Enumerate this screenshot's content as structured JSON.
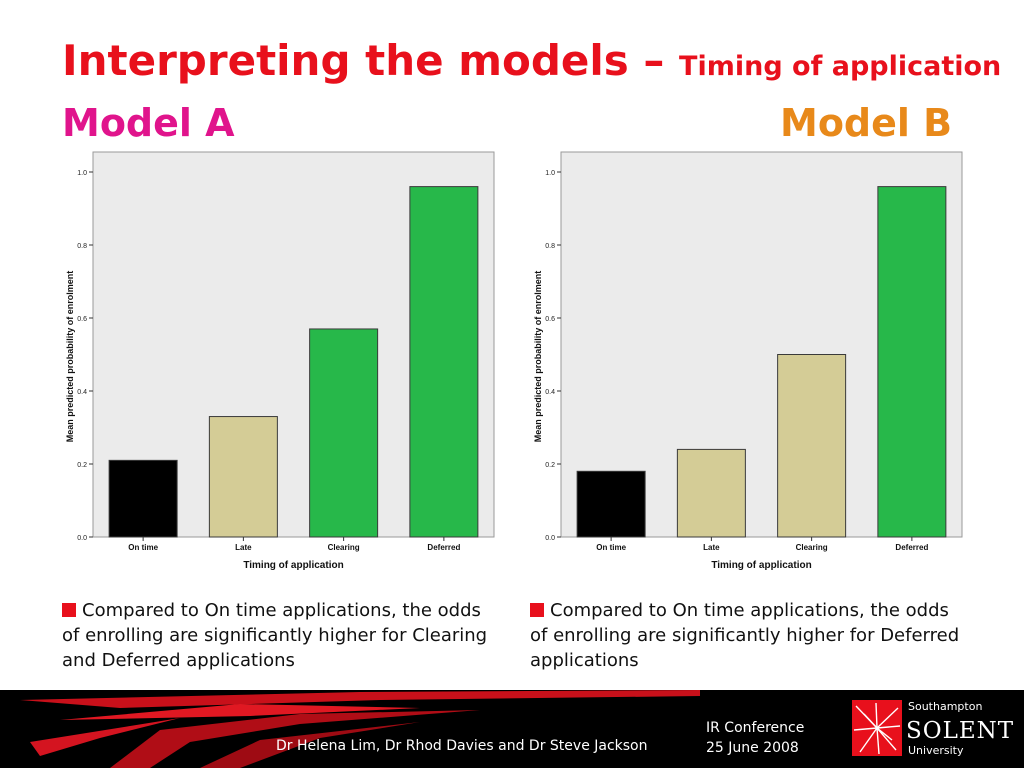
{
  "slide": {
    "title_main": "Interpreting the models – ",
    "title_sub": "Timing of application",
    "model_a_label": "Model A",
    "model_b_label": "Model B"
  },
  "chart_data": [
    {
      "type": "bar",
      "categories": [
        "On time",
        "Late",
        "Clearing",
        "Deferred"
      ],
      "values": [
        0.21,
        0.33,
        0.57,
        0.96
      ],
      "bar_colors": [
        "#000000",
        "#d4cc96",
        "#27b84a",
        "#27b84a"
      ],
      "title": "",
      "xlabel": "Timing of application",
      "ylabel": "Mean predicted probability of enrolment",
      "ylim": [
        0,
        1.0
      ],
      "yticks": [
        "0.0",
        "0.2",
        "0.4",
        "0.6",
        "0.8",
        "1.0"
      ],
      "grid": false,
      "plot_background": "#ebebeb"
    },
    {
      "type": "bar",
      "categories": [
        "On time",
        "Late",
        "Clearing",
        "Deferred"
      ],
      "values": [
        0.18,
        0.24,
        0.5,
        0.96
      ],
      "bar_colors": [
        "#000000",
        "#d4cc96",
        "#d4cc96",
        "#27b84a"
      ],
      "title": "",
      "xlabel": "Timing of application",
      "ylabel": "Mean predicted probability of enrolment",
      "ylim": [
        0,
        1.0
      ],
      "yticks": [
        "0.0",
        "0.2",
        "0.4",
        "0.6",
        "0.8",
        "1.0"
      ],
      "grid": false,
      "plot_background": "#ebebeb"
    }
  ],
  "bullets": {
    "left": "Compared to On time applications, the odds of enrolling are significantly higher for Clearing and Deferred applications",
    "right": "Compared to On time applications, the odds of enrolling are significantly higher for Deferred applications"
  },
  "footer": {
    "authors": "Dr Helena Lim, Dr Rhod Davies and Dr Steve Jackson",
    "conference": "IR Conference",
    "date": "25 June 2008"
  },
  "logo": {
    "line1": "Southampton",
    "line2": "SOLENT",
    "line3": "University"
  },
  "colors": {
    "title": "#e8101c",
    "model_a": "#e0148c",
    "model_b": "#e8891a",
    "accent_green": "#27b84a",
    "accent_tan": "#d4cc96",
    "footer_bg": "#000000"
  }
}
